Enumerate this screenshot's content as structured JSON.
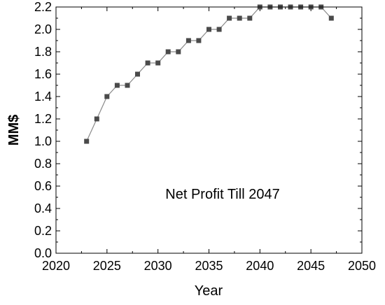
{
  "chart_data": {
    "type": "line",
    "title": "",
    "annotation": "Net Profit Till 2047",
    "xlabel": "Year",
    "ylabel": "MM$",
    "xlim": [
      2020,
      2050
    ],
    "ylim": [
      0.0,
      2.2
    ],
    "x_ticks": [
      "2020",
      "2025",
      "2030",
      "2035",
      "2040",
      "2045",
      "2050"
    ],
    "y_ticks": [
      "0.0",
      "0.2",
      "0.4",
      "0.6",
      "0.8",
      "1.0",
      "1.2",
      "1.4",
      "1.6",
      "1.8",
      "2.0",
      "2.2"
    ],
    "grid": false,
    "legend": "none",
    "marker": "square",
    "colors": {
      "line": "#8a8a8a",
      "marker": "#4a4a4a",
      "axis": "#000000"
    },
    "series": [
      {
        "x": [
          2023,
          2024,
          2025,
          2026,
          2027,
          2028,
          2029,
          2030,
          2031,
          2032,
          2033,
          2034,
          2035,
          2036,
          2037,
          2038,
          2039,
          2040,
          2041,
          2042,
          2043,
          2044,
          2045,
          2046,
          2047
        ],
        "values": [
          1.0,
          1.2,
          1.4,
          1.5,
          1.5,
          1.6,
          1.7,
          1.7,
          1.8,
          1.8,
          1.9,
          1.9,
          2.0,
          2.0,
          2.1,
          2.1,
          2.1,
          2.2,
          2.2,
          2.2,
          2.2,
          2.2,
          2.2,
          2.2,
          2.1
        ]
      }
    ]
  }
}
